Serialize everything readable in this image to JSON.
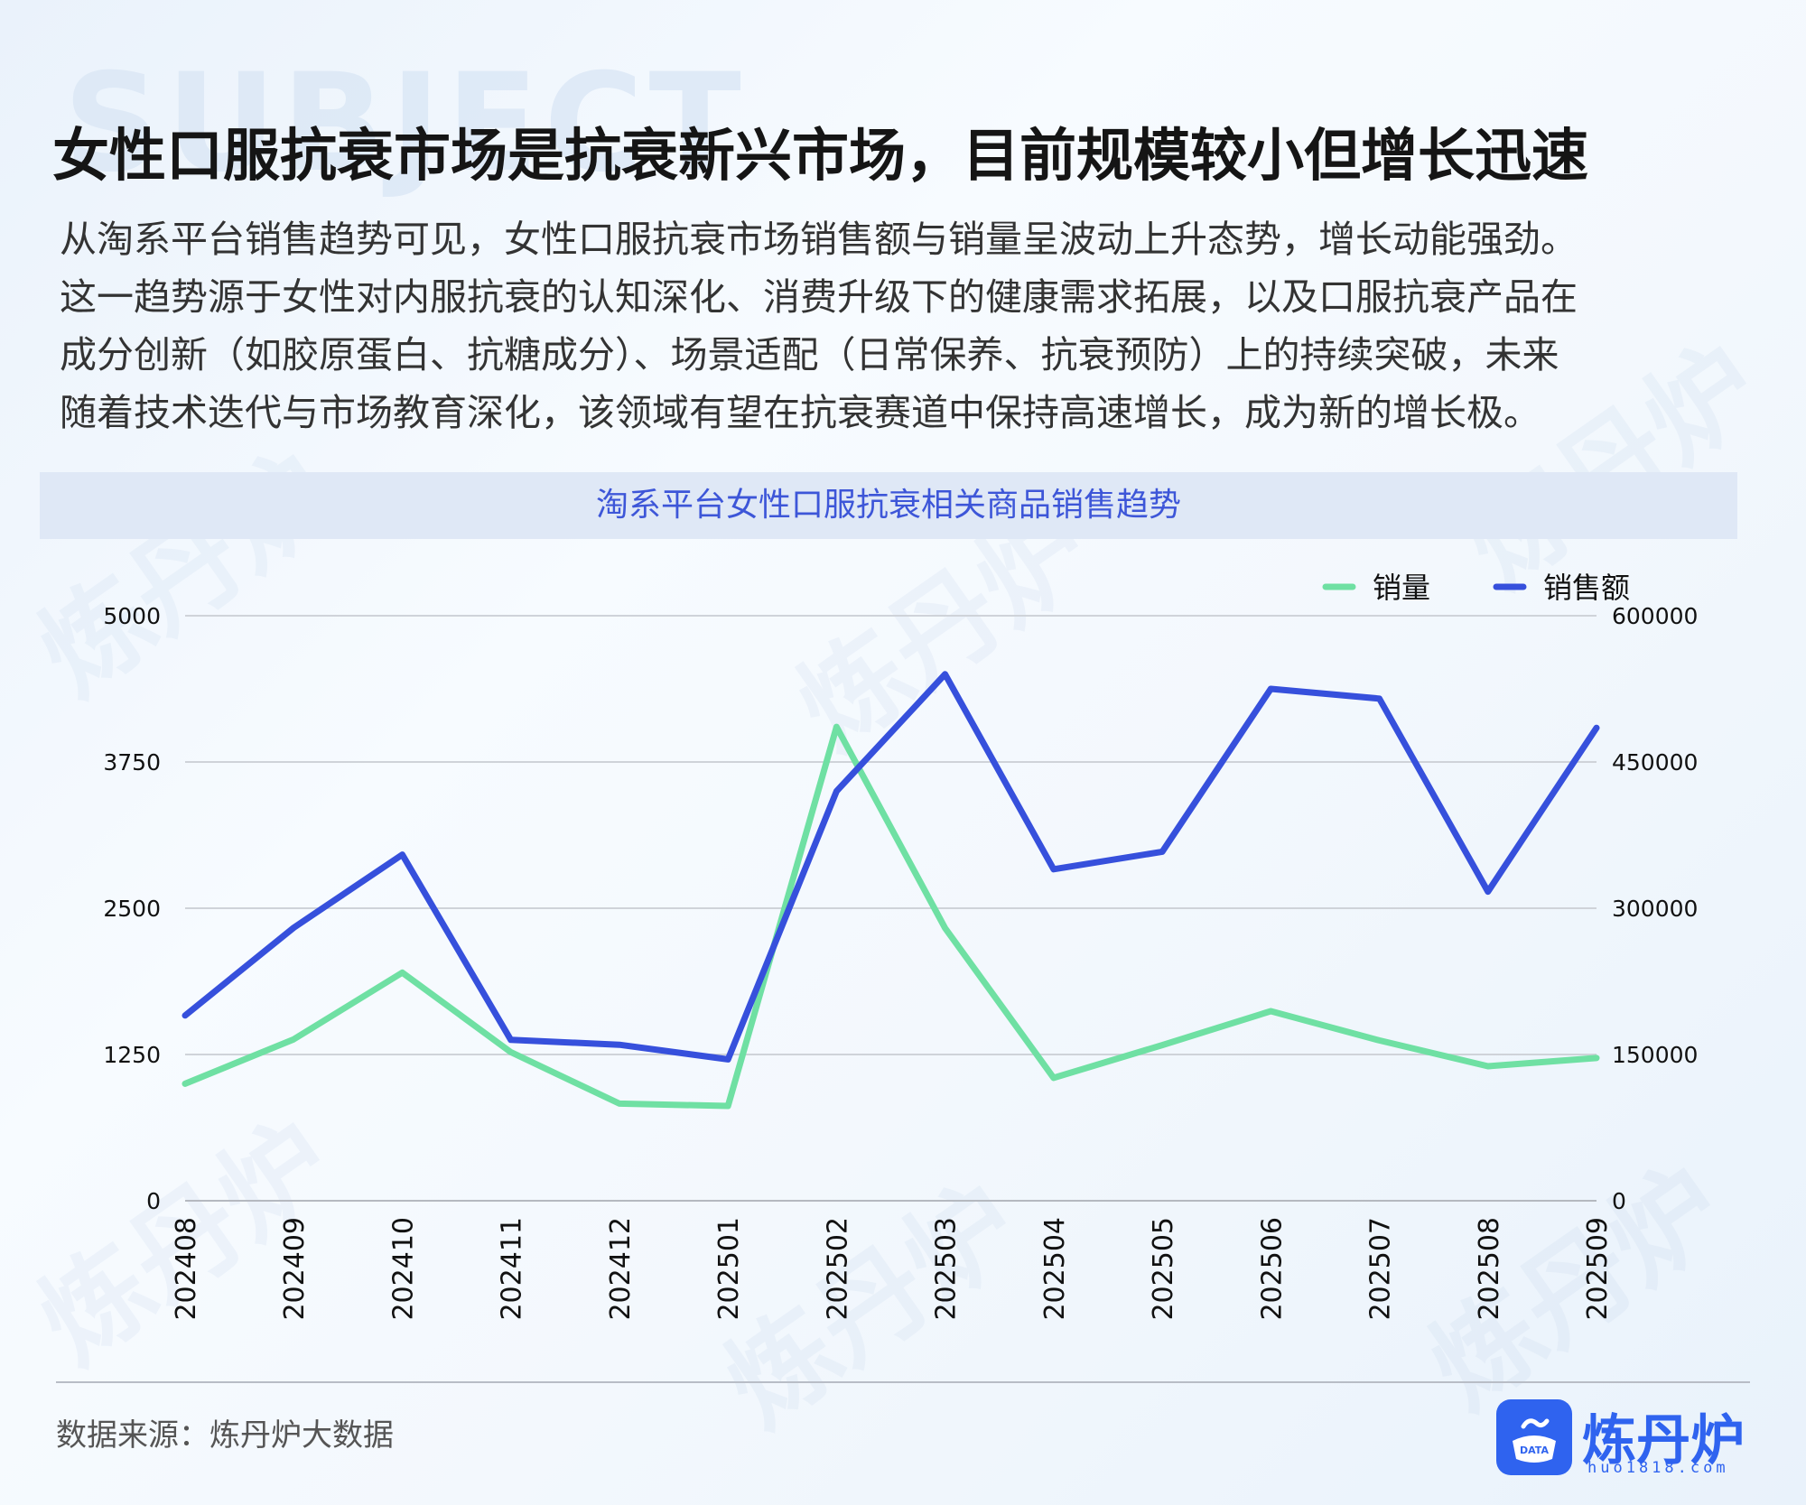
{
  "background_word": "SUBJECT",
  "watermark": "炼丹炉",
  "title": "女性口服抗衰市场是抗衰新兴市场，目前规模较小但增长迅速",
  "description_lines": [
    "从淘系平台销售趋势可见，女性口服抗衰市场销售额与销量呈波动上升态势，增长动能强劲。",
    "这一趋势源于女性对内服抗衰的认知深化、消费升级下的健康需求拓展，以及口服抗衰产品在",
    "成分创新（如胶原蛋白、抗糖成分）、场景适配（日常保养、抗衰预防）上的持续突破，未来",
    "随着技术迭代与市场教育深化，该领域有望在抗衰赛道中保持高速增长，成为新的增长极。"
  ],
  "chart_header": "淘系平台女性口服抗衰相关商品销售趋势",
  "chart_data": {
    "type": "line",
    "x": [
      "202408",
      "202409",
      "202410",
      "202411",
      "202412",
      "202501",
      "202502",
      "202503",
      "202504",
      "202505",
      "202506",
      "202507",
      "202508",
      "202509"
    ],
    "series": [
      {
        "name": "销量",
        "axis": "left",
        "color": "#6fe0a3",
        "values": [
          1000,
          1380,
          1950,
          1270,
          830,
          810,
          4050,
          2330,
          1050,
          1330,
          1620,
          1370,
          1150,
          1220
        ]
      },
      {
        "name": "销售额",
        "axis": "right",
        "color": "#3650dc",
        "values": [
          190000,
          280000,
          355000,
          165000,
          160000,
          145000,
          420000,
          540000,
          340000,
          358000,
          525000,
          515000,
          317000,
          485000
        ]
      }
    ],
    "y_left": {
      "min": 0,
      "max": 5000,
      "ticks": [
        "0",
        "1250",
        "2500",
        "3750",
        "5000"
      ]
    },
    "y_right": {
      "min": 0,
      "max": 600000,
      "ticks": [
        "0",
        "150000",
        "300000",
        "450000",
        "600000"
      ]
    },
    "grid": true,
    "legend_position": "top-right"
  },
  "source": "数据来源：炼丹炉大数据",
  "logo": {
    "name": "炼丹炉",
    "badge": "DATA",
    "url": "huo1818.com"
  },
  "colors": {
    "accent": "#3650dc",
    "series1": "#6fe0a3",
    "series2": "#3650dc",
    "header_bg": "#dfe8f6",
    "chart_title": "#3d56d8"
  }
}
